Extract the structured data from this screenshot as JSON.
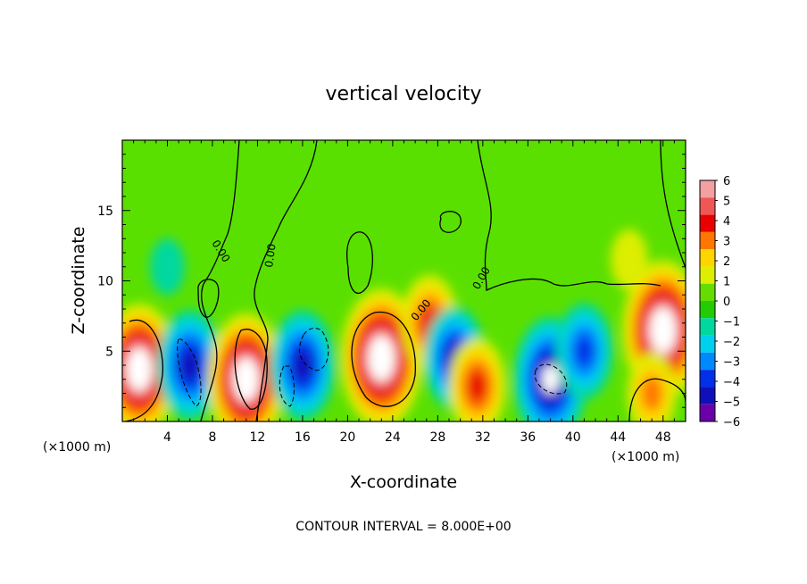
{
  "chart_data": {
    "type": "heatmap",
    "title": "vertical velocity",
    "xlabel": "X-coordinate",
    "ylabel": "Z-coordinate",
    "x_unit": "(×1000 m)",
    "xlim": [
      0,
      50
    ],
    "ylim": [
      0,
      20
    ],
    "x_ticks": [
      "4",
      "8",
      "12",
      "16",
      "20",
      "24",
      "28",
      "32",
      "36",
      "40",
      "44",
      "48"
    ],
    "y_ticks": [
      "5",
      "10",
      "15"
    ],
    "colorbar": {
      "labels": [
        "6",
        "5",
        "4",
        "3",
        "2",
        "1",
        "0",
        "−1",
        "−2",
        "−3",
        "−4",
        "−5",
        "−6"
      ],
      "min": -6,
      "max": 6,
      "colors": [
        "#f2a0a0",
        "#ef5757",
        "#e80000",
        "#ff7700",
        "#ffd500",
        "#ddee00",
        "#66dd00",
        "#22cc00",
        "#00d8a0",
        "#00d0ee",
        "#0088ff",
        "#0030e8",
        "#1010b8",
        "#6a00aa"
      ]
    },
    "features": [
      {
        "x": 1.5,
        "z": 3.7,
        "w": 6.5
      },
      {
        "x": 6,
        "z": 4,
        "w": -5
      },
      {
        "x": 11,
        "z": 3,
        "w": 6.5
      },
      {
        "x": 16,
        "z": 4,
        "w": -5
      },
      {
        "x": 23,
        "z": 4.5,
        "w": 7
      },
      {
        "x": 27.3,
        "z": 7,
        "w": 4
      },
      {
        "x": 29.5,
        "z": 4.5,
        "w": -4.5
      },
      {
        "x": 31.5,
        "z": 2.5,
        "w": 4
      },
      {
        "x": 38,
        "z": 3,
        "w": -6
      },
      {
        "x": 41,
        "z": 5,
        "w": -4
      },
      {
        "x": 48,
        "z": 6.5,
        "w": 7
      },
      {
        "x": 47,
        "z": 2,
        "w": 3
      },
      {
        "x": 45,
        "z": 11.5,
        "w": 1.5
      },
      {
        "x": 4,
        "z": 11,
        "w": -1.2
      }
    ],
    "contour_labels": [
      "0.00",
      "0.00",
      "0.00",
      "0.00"
    ],
    "contour_interval_label": "CONTOUR INTERVAL = 8.000E+00"
  }
}
